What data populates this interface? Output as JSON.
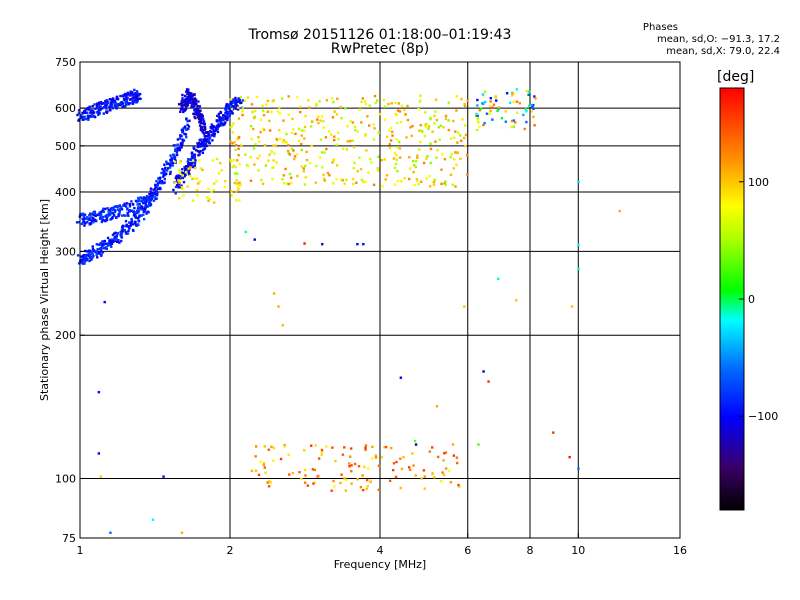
{
  "title_line1": "Tromsø 20151126 01:18:00–01:19:43",
  "title_line2": "RwPretec (8p)",
  "stats": {
    "header": "Phases",
    "o_line": "mean, sd,O: −91.3, 17.2",
    "x_line": "mean, sd,X:  79.0, 22.4"
  },
  "colorbar": {
    "unit": "[deg]",
    "ticks": [
      {
        "value": 100,
        "label": "100"
      },
      {
        "value": 0,
        "label": "0"
      },
      {
        "value": -100,
        "label": "−100"
      }
    ],
    "range": [
      -180,
      180
    ]
  },
  "chart_data": {
    "type": "scatter",
    "xlabel": "Frequency [MHz]",
    "ylabel": "Stationary phase Virtual Height [km]",
    "xscale": "log",
    "yscale": "log",
    "xlim": [
      1,
      16
    ],
    "ylim": [
      75,
      750
    ],
    "xticks": [
      1,
      2,
      4,
      6,
      8,
      10,
      16
    ],
    "yticks": [
      75,
      100,
      200,
      300,
      400,
      500,
      600,
      750
    ],
    "xgrid": [
      2,
      4,
      6,
      8,
      10
    ],
    "ygrid": [
      100,
      200,
      300,
      400,
      500,
      600
    ],
    "color_field": "phase_deg",
    "color_range": [
      -180,
      180
    ],
    "traces": [
      {
        "name": "",
        "x": [
          1.0,
          1.03,
          1.06,
          1.1,
          1.15,
          1.2,
          1.26,
          1.31,
          1.36,
          1.4,
          1.45,
          1.5,
          1.55,
          1.6,
          1.65
        ],
        "y": [
          288,
          292,
          298,
          305,
          315,
          325,
          340,
          355,
          375,
          395,
          420,
          450,
          480,
          520,
          560
        ],
        "phase": -90
      },
      {
        "name": "",
        "x": [
          1.0,
          1.04,
          1.08,
          1.12,
          1.16,
          1.2,
          1.24,
          1.28,
          1.32
        ],
        "y": [
          580,
          588,
          596,
          604,
          612,
          620,
          628,
          634,
          640
        ],
        "phase": -95
      },
      {
        "name": "",
        "x": [
          1.0,
          1.04,
          1.08,
          1.12,
          1.16,
          1.22,
          1.28,
          1.34,
          1.4
        ],
        "y": [
          350,
          352,
          355,
          358,
          362,
          366,
          372,
          380,
          392
        ],
        "phase": -88
      },
      {
        "name": "",
        "x": [
          1.55,
          1.6,
          1.65,
          1.7,
          1.75,
          1.8,
          1.85,
          1.9,
          1.95,
          2.0,
          2.05,
          2.1
        ],
        "y": [
          410,
          430,
          450,
          480,
          500,
          520,
          540,
          560,
          580,
          600,
          610,
          620
        ],
        "phase": -100
      },
      {
        "name": "",
        "x": [
          1.6,
          1.62,
          1.65,
          1.67,
          1.7,
          1.72,
          1.75,
          1.78
        ],
        "y": [
          600,
          620,
          640,
          630,
          610,
          590,
          570,
          545
        ],
        "phase": -110
      }
    ],
    "clusters": [
      {
        "x_range": [
          2.0,
          6.0
        ],
        "y_range": [
          410,
          640
        ],
        "phase_range": [
          40,
          130
        ],
        "count": 420
      },
      {
        "x_range": [
          6.2,
          8.2
        ],
        "y_range": [
          540,
          660
        ],
        "phase_range": [
          -100,
          150
        ],
        "count": 70
      },
      {
        "x_range": [
          1.55,
          2.1
        ],
        "y_range": [
          380,
          470
        ],
        "phase_range": [
          60,
          110
        ],
        "count": 60
      },
      {
        "x_range": [
          2.2,
          5.8
        ],
        "y_range": [
          94,
          118
        ],
        "phase_range": [
          80,
          160
        ],
        "count": 130
      }
    ],
    "isolated_points": [
      {
        "x": 1.12,
        "y": 235,
        "phase": -110
      },
      {
        "x": 1.09,
        "y": 152,
        "phase": -100
      },
      {
        "x": 1.09,
        "y": 113,
        "phase": -110
      },
      {
        "x": 1.1,
        "y": 101,
        "phase": 100
      },
      {
        "x": 1.15,
        "y": 77,
        "phase": -60
      },
      {
        "x": 1.4,
        "y": 82,
        "phase": -20
      },
      {
        "x": 1.47,
        "y": 101,
        "phase": -100
      },
      {
        "x": 1.6,
        "y": 77,
        "phase": 110
      },
      {
        "x": 2.15,
        "y": 330,
        "phase": -10
      },
      {
        "x": 2.24,
        "y": 318,
        "phase": -110
      },
      {
        "x": 2.45,
        "y": 245,
        "phase": 110
      },
      {
        "x": 2.5,
        "y": 230,
        "phase": 110
      },
      {
        "x": 2.55,
        "y": 210,
        "phase": 105
      },
      {
        "x": 2.82,
        "y": 312,
        "phase": 170
      },
      {
        "x": 3.06,
        "y": 311,
        "phase": -120
      },
      {
        "x": 3.6,
        "y": 311,
        "phase": -100
      },
      {
        "x": 3.7,
        "y": 311,
        "phase": -100
      },
      {
        "x": 4.4,
        "y": 163,
        "phase": -100
      },
      {
        "x": 4.7,
        "y": 120,
        "phase": 30
      },
      {
        "x": 4.72,
        "y": 118,
        "phase": -100
      },
      {
        "x": 5.2,
        "y": 142,
        "phase": 110
      },
      {
        "x": 5.6,
        "y": 118,
        "phase": 110
      },
      {
        "x": 5.9,
        "y": 230,
        "phase": 100
      },
      {
        "x": 6.3,
        "y": 118,
        "phase": 30
      },
      {
        "x": 6.45,
        "y": 168,
        "phase": -110
      },
      {
        "x": 6.6,
        "y": 160,
        "phase": 160
      },
      {
        "x": 6.9,
        "y": 263,
        "phase": -10
      },
      {
        "x": 7.5,
        "y": 237,
        "phase": 100
      },
      {
        "x": 8.9,
        "y": 125,
        "phase": 160
      },
      {
        "x": 9.6,
        "y": 111,
        "phase": 170
      },
      {
        "x": 9.7,
        "y": 230,
        "phase": 100
      },
      {
        "x": 10.0,
        "y": 276,
        "phase": -10
      },
      {
        "x": 10.0,
        "y": 310,
        "phase": -20
      },
      {
        "x": 10.0,
        "y": 420,
        "phase": -30
      },
      {
        "x": 10.0,
        "y": 105,
        "phase": -60
      },
      {
        "x": 12.1,
        "y": 365,
        "phase": 110
      }
    ]
  }
}
